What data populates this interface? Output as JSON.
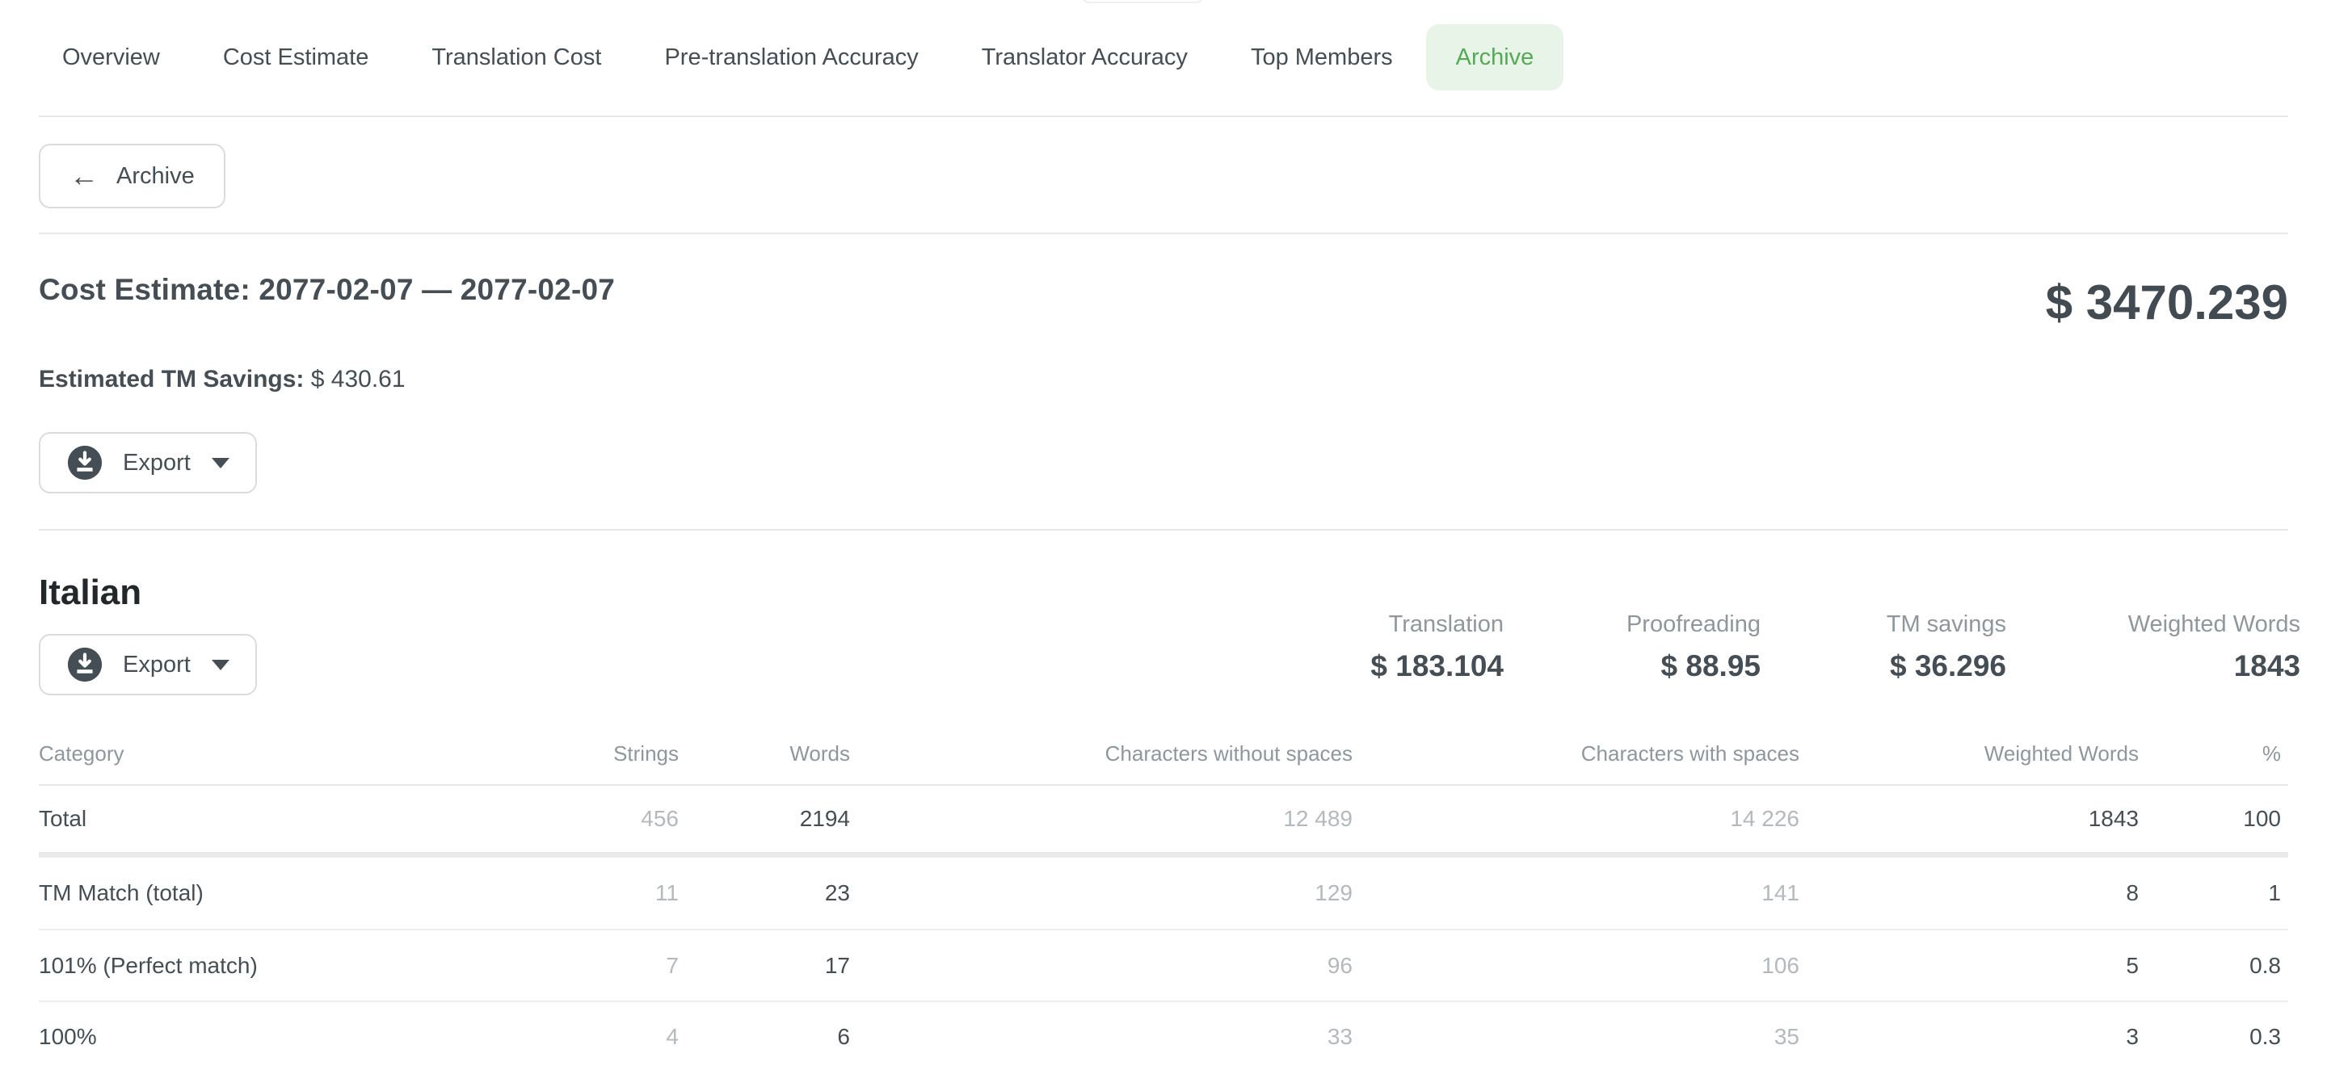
{
  "colors": {
    "accent_green": "#55a957",
    "accent_green_bg": "#e7f4e7",
    "text_dark": "#454e55",
    "text_gray": "#8f979d",
    "text_light_gray": "#b3b9bd",
    "border": "#e6e8e9"
  },
  "tabs": [
    {
      "label": "Overview",
      "active": false
    },
    {
      "label": "Cost Estimate",
      "active": false
    },
    {
      "label": "Translation Cost",
      "active": false
    },
    {
      "label": "Pre-translation Accuracy",
      "active": false
    },
    {
      "label": "Translator Accuracy",
      "active": false
    },
    {
      "label": "Top Members",
      "active": false
    },
    {
      "label": "Archive",
      "active": true
    }
  ],
  "toolbar": {
    "back_label": "Archive",
    "back_arrow": "←"
  },
  "summary": {
    "title": "Cost Estimate: 2077-02-07 — 2077-02-07",
    "grand_total": "$ 3470.239",
    "tm_savings_label": "Estimated TM Savings:",
    "tm_savings_value": "$ 430.61",
    "export_label": "Export"
  },
  "language_section": {
    "name": "Italian",
    "export_label": "Export",
    "stats": [
      {
        "label": "Translation",
        "value": "$ 183.104"
      },
      {
        "label": "Proofreading",
        "value": "$ 88.95"
      },
      {
        "label": "TM savings",
        "value": "$ 36.296"
      },
      {
        "label": "Weighted Words",
        "value": "1843"
      }
    ]
  },
  "table": {
    "headers": [
      "Category",
      "Strings",
      "Words",
      "Characters without spaces",
      "Characters with spaces",
      "Weighted Words",
      "%"
    ],
    "muted_columns": [
      1,
      3,
      4
    ],
    "rows": [
      {
        "category": "Total",
        "strings": "456",
        "words": "2194",
        "chars_without_spaces": "12 489",
        "chars_with_spaces": "14 226",
        "weighted_words": "1843",
        "percent": "100"
      },
      {
        "category": "TM Match (total)",
        "strings": "11",
        "words": "23",
        "chars_without_spaces": "129",
        "chars_with_spaces": "141",
        "weighted_words": "8",
        "percent": "1"
      },
      {
        "category": "101% (Perfect match)",
        "strings": "7",
        "words": "17",
        "chars_without_spaces": "96",
        "chars_with_spaces": "106",
        "weighted_words": "5",
        "percent": "0.8"
      },
      {
        "category": "100%",
        "strings": "4",
        "words": "6",
        "chars_without_spaces": "33",
        "chars_with_spaces": "35",
        "weighted_words": "3",
        "percent": "0.3"
      }
    ]
  }
}
